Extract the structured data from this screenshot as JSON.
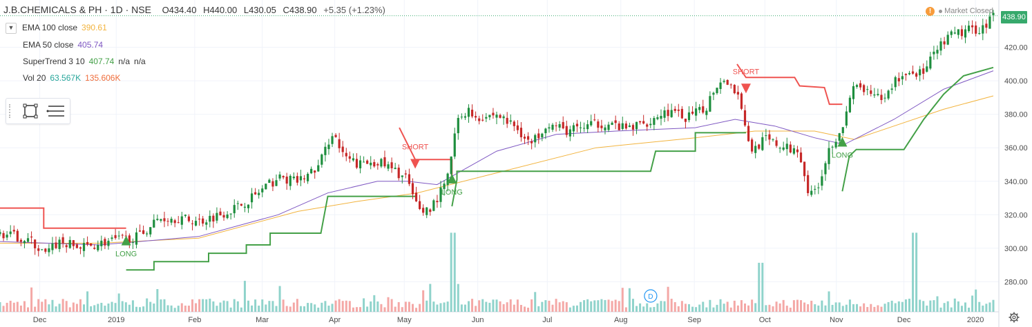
{
  "header": {
    "symbol": "J.B.CHEMICALS & PH · 1D · NSE",
    "open": "O434.40",
    "high": "H440.00",
    "low": "L430.05",
    "close": "C438.90",
    "change": "+5.35 (+1.23%)"
  },
  "status": {
    "market": "Market Closed",
    "warning_icon": "!"
  },
  "legend": [
    {
      "name": "EMA 100 close",
      "values": [
        "390.61"
      ],
      "colors": [
        "#f2b33d"
      ]
    },
    {
      "name": "EMA 50 close",
      "values": [
        "405.74"
      ],
      "colors": [
        "#7e57c2"
      ]
    },
    {
      "name": "SuperTrend 3 10",
      "values": [
        "407.74",
        "n/a",
        "n/a"
      ],
      "colors": [
        "#43a047",
        "#333333",
        "#333333"
      ]
    },
    {
      "name": "Vol 20",
      "values": [
        "63.567K",
        "135.606K"
      ],
      "colors": [
        "#26a69a",
        "#ef6c3a"
      ]
    }
  ],
  "toolbox": {
    "icons": [
      "rectangle-select-icon",
      "list-icon"
    ]
  },
  "last_price": "438.90",
  "colors": {
    "up": "#26a69a",
    "down": "#ef5350",
    "body_up": "#1e8e3e",
    "body_down": "#c62828",
    "ema100": "#f2b33d",
    "ema50": "#7e57c2",
    "st_up": "#43a047",
    "st_down": "#ef5350",
    "vol_up": "#8fd3cb",
    "vol_down": "#f4a8a6"
  },
  "chart_data": {
    "type": "candlestick",
    "y_ticks": [
      280,
      300,
      320,
      340,
      360,
      380,
      400,
      420
    ],
    "ylim": [
      262,
      445
    ],
    "x_labels": [
      "Dec",
      "2019",
      "Feb",
      "Mar",
      "Apr",
      "May",
      "Jun",
      "Jul",
      "Aug",
      "Sep",
      "Oct",
      "Nov",
      "Dec",
      "2020"
    ],
    "x_label_pos": [
      0.04,
      0.117,
      0.196,
      0.264,
      0.337,
      0.407,
      0.481,
      0.551,
      0.625,
      0.699,
      0.77,
      0.842,
      0.91,
      0.982
    ],
    "events": [
      {
        "type": "LONG",
        "x": 0.127,
        "price": 305
      },
      {
        "type": "SHORT",
        "x": 0.418,
        "price": 350
      },
      {
        "type": "LONG",
        "x": 0.455,
        "price": 342
      },
      {
        "type": "SHORT",
        "x": 0.751,
        "price": 395
      },
      {
        "type": "LONG",
        "x": 0.848,
        "price": 364
      }
    ],
    "dividend_marker": {
      "label": "D",
      "x": 0.655
    },
    "price_anchors": [
      [
        0.0,
        309
      ],
      [
        0.03,
        305
      ],
      [
        0.045,
        296
      ],
      [
        0.06,
        304
      ],
      [
        0.08,
        300
      ],
      [
        0.1,
        303
      ],
      [
        0.12,
        305
      ],
      [
        0.14,
        307
      ],
      [
        0.16,
        318
      ],
      [
        0.18,
        318
      ],
      [
        0.2,
        316
      ],
      [
        0.22,
        320
      ],
      [
        0.24,
        325
      ],
      [
        0.26,
        333
      ],
      [
        0.28,
        342
      ],
      [
        0.3,
        340
      ],
      [
        0.32,
        348
      ],
      [
        0.335,
        370
      ],
      [
        0.345,
        355
      ],
      [
        0.36,
        350
      ],
      [
        0.38,
        352
      ],
      [
        0.4,
        345
      ],
      [
        0.41,
        342
      ],
      [
        0.415,
        330
      ],
      [
        0.425,
        322
      ],
      [
        0.435,
        325
      ],
      [
        0.45,
        340
      ],
      [
        0.46,
        375
      ],
      [
        0.47,
        383
      ],
      [
        0.48,
        378
      ],
      [
        0.5,
        380
      ],
      [
        0.52,
        372
      ],
      [
        0.535,
        362
      ],
      [
        0.55,
        375
      ],
      [
        0.57,
        370
      ],
      [
        0.59,
        373
      ],
      [
        0.61,
        375
      ],
      [
        0.63,
        371
      ],
      [
        0.65,
        375
      ],
      [
        0.67,
        382
      ],
      [
        0.69,
        378
      ],
      [
        0.71,
        383
      ],
      [
        0.72,
        397
      ],
      [
        0.73,
        402
      ],
      [
        0.745,
        390
      ],
      [
        0.755,
        358
      ],
      [
        0.77,
        365
      ],
      [
        0.79,
        360
      ],
      [
        0.805,
        358
      ],
      [
        0.815,
        330
      ],
      [
        0.825,
        340
      ],
      [
        0.835,
        360
      ],
      [
        0.85,
        375
      ],
      [
        0.86,
        398
      ],
      [
        0.875,
        392
      ],
      [
        0.89,
        388
      ],
      [
        0.9,
        400
      ],
      [
        0.915,
        405
      ],
      [
        0.93,
        405
      ],
      [
        0.945,
        420
      ],
      [
        0.96,
        428
      ],
      [
        0.975,
        430
      ],
      [
        0.99,
        432
      ],
      [
        1.0,
        439
      ]
    ],
    "ema100_anchors": [
      [
        0.0,
        303
      ],
      [
        0.1,
        303
      ],
      [
        0.2,
        306
      ],
      [
        0.3,
        322
      ],
      [
        0.36,
        328
      ],
      [
        0.42,
        333
      ],
      [
        0.5,
        345
      ],
      [
        0.6,
        360
      ],
      [
        0.7,
        366
      ],
      [
        0.76,
        370
      ],
      [
        0.82,
        370
      ],
      [
        0.86,
        365
      ],
      [
        0.9,
        373
      ],
      [
        0.95,
        383
      ],
      [
        1.0,
        391
      ]
    ],
    "ema50_anchors": [
      [
        0.0,
        304
      ],
      [
        0.1,
        302
      ],
      [
        0.2,
        307
      ],
      [
        0.28,
        320
      ],
      [
        0.33,
        333
      ],
      [
        0.38,
        340
      ],
      [
        0.41,
        340
      ],
      [
        0.44,
        338
      ],
      [
        0.5,
        358
      ],
      [
        0.56,
        368
      ],
      [
        0.62,
        370
      ],
      [
        0.7,
        372
      ],
      [
        0.74,
        377
      ],
      [
        0.78,
        373
      ],
      [
        0.82,
        366
      ],
      [
        0.85,
        362
      ],
      [
        0.9,
        377
      ],
      [
        0.95,
        395
      ],
      [
        1.0,
        406
      ]
    ],
    "supertrend_down_1": [
      [
        0.0,
        324
      ],
      [
        0.044,
        324
      ],
      [
        0.044,
        312
      ],
      [
        0.127,
        312
      ]
    ],
    "supertrend_up_1": [
      [
        0.127,
        287
      ],
      [
        0.155,
        287
      ],
      [
        0.155,
        292
      ],
      [
        0.21,
        292
      ],
      [
        0.21,
        297
      ],
      [
        0.248,
        297
      ],
      [
        0.248,
        302
      ],
      [
        0.272,
        302
      ],
      [
        0.272,
        309
      ],
      [
        0.323,
        309
      ],
      [
        0.33,
        331
      ],
      [
        0.418,
        331
      ]
    ],
    "supertrend_down_2": [
      [
        0.402,
        372
      ],
      [
        0.418,
        353
      ],
      [
        0.418,
        353
      ],
      [
        0.455,
        353
      ],
      [
        0.455,
        341
      ]
    ],
    "supertrend_up_2": [
      [
        0.455,
        325
      ],
      [
        0.46,
        341
      ],
      [
        0.46,
        346
      ],
      [
        0.655,
        346
      ],
      [
        0.66,
        358
      ],
      [
        0.7,
        358
      ],
      [
        0.7,
        369
      ],
      [
        0.751,
        369
      ]
    ],
    "supertrend_down_3": [
      [
        0.742,
        410
      ],
      [
        0.751,
        402
      ],
      [
        0.8,
        402
      ],
      [
        0.805,
        397
      ],
      [
        0.83,
        396
      ],
      [
        0.835,
        386
      ],
      [
        0.848,
        386
      ]
    ],
    "supertrend_up_3": [
      [
        0.848,
        334
      ],
      [
        0.855,
        355
      ],
      [
        0.862,
        359
      ],
      [
        0.91,
        359
      ],
      [
        0.93,
        377
      ],
      [
        0.95,
        392
      ],
      [
        0.97,
        403
      ],
      [
        1.0,
        408
      ]
    ],
    "volume_note": "volume bars along bottom; tall spikes near May-end, Sep-end, Dec"
  }
}
